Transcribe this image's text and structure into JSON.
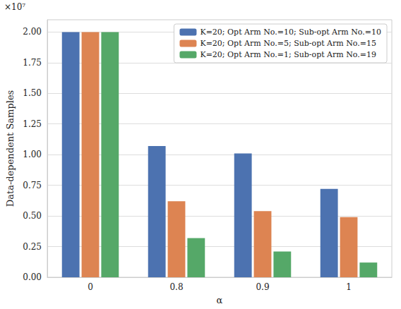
{
  "chart_data": {
    "type": "bar",
    "categories": [
      "0",
      "0.8",
      "0.9",
      "1"
    ],
    "series": [
      {
        "name": "K=20; Opt Arm No.=10; Sub-opt Arm No.=10",
        "color": "#4c72b0",
        "values": [
          2.0,
          1.07,
          1.01,
          0.72
        ]
      },
      {
        "name": "K=20; Opt Arm No.=5; Sub-opt Arm No.=15",
        "color": "#dd8452",
        "values": [
          2.0,
          0.62,
          0.54,
          0.49
        ]
      },
      {
        "name": "K=20; Opt Arm No.=1; Sub-opt Arm No.=19",
        "color": "#55a868",
        "values": [
          2.0,
          0.32,
          0.21,
          0.12
        ]
      }
    ],
    "xlabel": "α",
    "ylabel": "Data-dependent Samples",
    "ylim": [
      0,
      2.1
    ],
    "yticks": [
      {
        "value": 0,
        "label": "0.00"
      },
      {
        "value": 0.25,
        "label": "0.25"
      },
      {
        "value": 0.5,
        "label": "0.50"
      },
      {
        "value": 0.75,
        "label": "0.75"
      },
      {
        "value": 1.0,
        "label": "1.00"
      },
      {
        "value": 1.25,
        "label": "1.25"
      },
      {
        "value": 1.5,
        "label": "1.50"
      },
      {
        "value": 1.75,
        "label": "1.75"
      },
      {
        "value": 2.0,
        "label": "2.00"
      }
    ],
    "annotations": [
      "×10⁷"
    ],
    "grid": true,
    "legend": "upper right"
  }
}
